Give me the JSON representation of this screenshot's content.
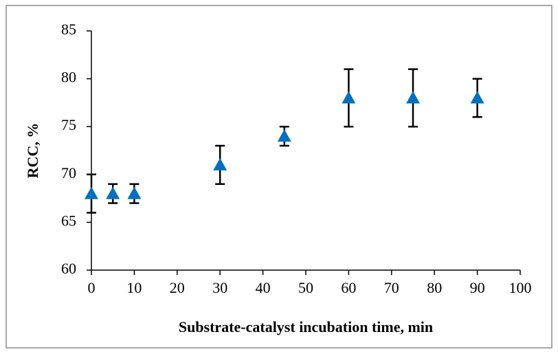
{
  "chart_data": {
    "type": "scatter",
    "x": [
      0,
      5,
      10,
      30,
      45,
      60,
      75,
      90
    ],
    "values": [
      68,
      68,
      68,
      71,
      74,
      78,
      78,
      78
    ],
    "errors": [
      2,
      1,
      1,
      2,
      1,
      3,
      3,
      2
    ],
    "color": "#0070c0",
    "xlim": [
      0,
      100
    ],
    "xticks": [
      0,
      10,
      20,
      30,
      40,
      50,
      60,
      70,
      80,
      90,
      100
    ],
    "ylim": [
      60,
      85
    ],
    "yticks": [
      60,
      65,
      70,
      75,
      80,
      85
    ],
    "xlabel": "Substrate-catalyst incubation time, min",
    "ylabel": "RCC, %"
  }
}
